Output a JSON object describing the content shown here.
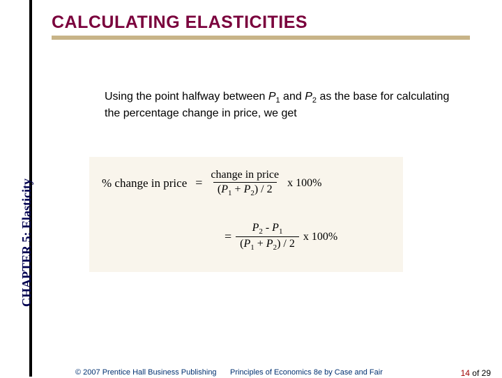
{
  "sidebar": {
    "label": "CHAPTER 5: Elasticity"
  },
  "title": {
    "text": "CALCULATING ELASTICITIES"
  },
  "body": {
    "pre": "Using the point halfway between ",
    "p1": "P",
    "s1": "1",
    "mid1": " and ",
    "p2": "P",
    "s2": "2",
    "post": " as the base for calculating the percentage change in price, we get"
  },
  "formula": {
    "lhs": "% change in price",
    "eq": "=",
    "num1": "change in price",
    "den1_a": "(",
    "den1_p1": "P",
    "den1_s1": "1",
    "den1_plus": " + ",
    "den1_p2": "P",
    "den1_s2": "2",
    "den1_b": ") / 2",
    "tail1": " x 100%",
    "num2_a": "P",
    "num2_s2": "2",
    "num2_minus": " - ",
    "num2_b": "P",
    "num2_s1": "1",
    "den2_a": "(",
    "den2_p1": "P",
    "den2_s1": "1",
    "den2_plus": " + ",
    "den2_p2": "P",
    "den2_s2": "2",
    "den2_b": ") / 2",
    "tail2": " x 100%"
  },
  "footer": {
    "copyright": "© 2007 Prentice Hall Business Publishing",
    "booktitle": "Principles of Economics 8e by Case and Fair",
    "page_current": "14",
    "page_of": " of ",
    "page_total": "29"
  },
  "colors": {
    "title": "#7a003c",
    "underline": "#c8b488",
    "sidebar": "#000050",
    "formula_bg": "#f9f5ec",
    "footer_text": "#003070",
    "page_current": "#a00000"
  }
}
